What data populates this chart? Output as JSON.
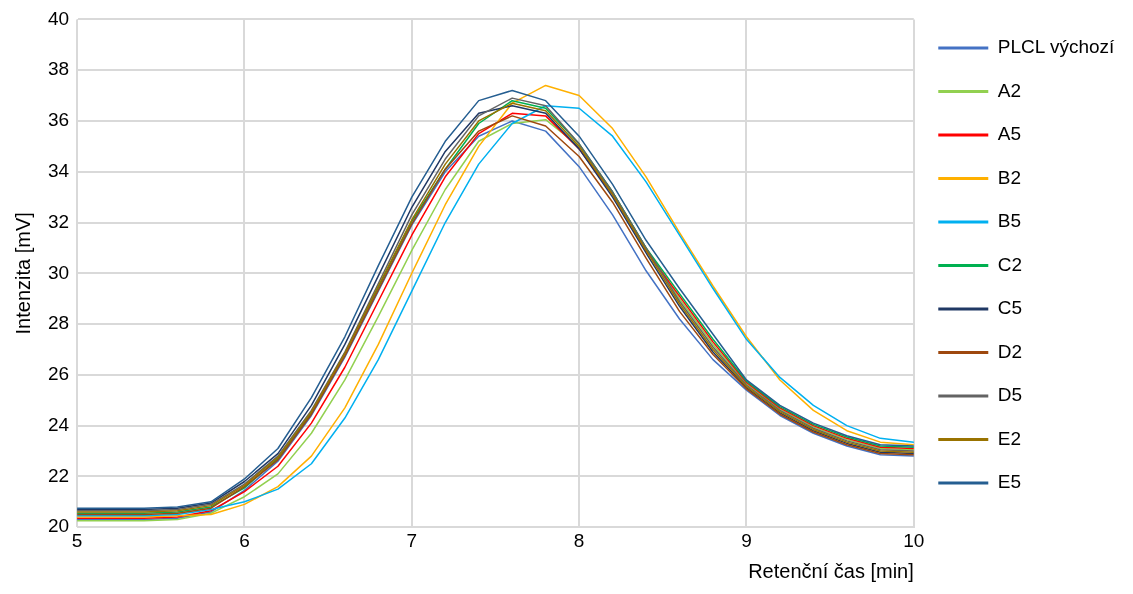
{
  "chart_data": {
    "type": "line",
    "xlabel": "Retenční čas [min]",
    "ylabel": "Intenzita [mV]",
    "x": [
      5.0,
      5.2,
      5.4,
      5.6,
      5.8,
      6.0,
      6.2,
      6.4,
      6.6,
      6.8,
      7.0,
      7.2,
      7.4,
      7.6,
      7.8,
      8.0,
      8.2,
      8.4,
      8.6,
      8.8,
      9.0,
      9.2,
      9.4,
      9.6,
      9.8,
      10.0
    ],
    "xlim": [
      5,
      10
    ],
    "xticks": [
      5,
      6,
      7,
      8,
      9,
      10
    ],
    "ylim": [
      20,
      40
    ],
    "yticks": [
      20,
      22,
      24,
      26,
      28,
      30,
      32,
      34,
      36,
      38,
      40
    ],
    "grid": true,
    "legend": "right",
    "marker": "none",
    "line_style": "solid",
    "series": [
      {
        "name": "PLCL výchozí",
        "color": "#4472c4",
        "values": [
          20.3,
          20.3,
          20.3,
          20.35,
          20.6,
          21.45,
          22.6,
          24.4,
          26.7,
          29.3,
          31.9,
          34.0,
          35.4,
          36.0,
          35.6,
          34.2,
          32.3,
          30.1,
          28.2,
          26.6,
          25.4,
          24.4,
          23.7,
          23.2,
          22.85,
          22.8
        ]
      },
      {
        "name": "A2",
        "color": "#92d050",
        "values": [
          20.25,
          20.25,
          20.25,
          20.3,
          20.55,
          21.2,
          22.1,
          23.7,
          25.8,
          28.3,
          30.9,
          33.3,
          35.2,
          35.9,
          36.05,
          35.0,
          33.2,
          31.0,
          29.0,
          27.2,
          25.65,
          24.65,
          23.95,
          23.45,
          23.1,
          23.05
        ]
      },
      {
        "name": "A5",
        "color": "#ff0000",
        "values": [
          20.35,
          20.35,
          20.35,
          20.4,
          20.65,
          21.4,
          22.4,
          24.1,
          26.3,
          28.9,
          31.5,
          33.8,
          35.5,
          36.3,
          36.2,
          34.9,
          33.1,
          30.9,
          29.1,
          27.3,
          25.7,
          24.7,
          24.0,
          23.5,
          23.15,
          23.1
        ]
      },
      {
        "name": "B2",
        "color": "#ffb000",
        "values": [
          20.4,
          20.4,
          20.4,
          20.45,
          20.5,
          20.9,
          21.6,
          22.8,
          24.7,
          27.2,
          30.0,
          32.7,
          35.0,
          36.7,
          37.4,
          37.0,
          35.7,
          33.8,
          31.6,
          29.5,
          27.5,
          25.8,
          24.6,
          23.8,
          23.35,
          23.25
        ]
      },
      {
        "name": "B5",
        "color": "#00b0f0",
        "values": [
          20.45,
          20.45,
          20.45,
          20.5,
          20.7,
          21.0,
          21.5,
          22.5,
          24.3,
          26.6,
          29.3,
          32.0,
          34.3,
          35.9,
          36.6,
          36.5,
          35.4,
          33.6,
          31.5,
          29.4,
          27.4,
          25.9,
          24.8,
          24.0,
          23.5,
          23.35
        ]
      },
      {
        "name": "C2",
        "color": "#00b050",
        "values": [
          20.55,
          20.55,
          20.55,
          20.6,
          20.8,
          21.55,
          22.7,
          24.5,
          26.85,
          29.45,
          32.05,
          34.1,
          35.9,
          36.8,
          36.5,
          35.1,
          33.2,
          31.0,
          29.2,
          27.4,
          25.75,
          24.75,
          24.05,
          23.55,
          23.2,
          23.15
        ]
      },
      {
        "name": "C5",
        "color": "#203864",
        "values": [
          20.7,
          20.7,
          20.7,
          20.75,
          20.95,
          21.8,
          22.9,
          24.8,
          27.2,
          29.9,
          32.6,
          34.8,
          36.3,
          36.6,
          36.3,
          34.9,
          33.0,
          30.8,
          28.7,
          26.9,
          25.5,
          24.5,
          23.8,
          23.3,
          22.95,
          22.9
        ]
      },
      {
        "name": "D2",
        "color": "#9e480e",
        "values": [
          20.5,
          20.5,
          20.5,
          20.55,
          20.75,
          21.6,
          22.65,
          24.45,
          26.75,
          29.35,
          31.95,
          34.1,
          35.6,
          36.2,
          35.8,
          34.6,
          32.8,
          30.6,
          28.5,
          26.8,
          25.45,
          24.45,
          23.75,
          23.25,
          22.9,
          22.85
        ]
      },
      {
        "name": "D5",
        "color": "#636363",
        "values": [
          20.65,
          20.65,
          20.65,
          20.7,
          20.9,
          21.7,
          22.8,
          24.6,
          26.9,
          29.6,
          32.3,
          34.5,
          36.2,
          36.9,
          36.6,
          35.1,
          33.2,
          31.0,
          28.9,
          27.1,
          25.6,
          24.6,
          23.9,
          23.4,
          23.05,
          23.0
        ]
      },
      {
        "name": "E2",
        "color": "#997300",
        "values": [
          20.6,
          20.6,
          20.6,
          20.65,
          20.85,
          21.65,
          22.75,
          24.55,
          26.85,
          29.5,
          32.1,
          34.3,
          36.0,
          36.7,
          36.4,
          35.0,
          33.1,
          30.9,
          28.8,
          27.0,
          25.55,
          24.55,
          23.85,
          23.35,
          23.0,
          22.95
        ]
      },
      {
        "name": "E5",
        "color": "#255e91",
        "values": [
          20.75,
          20.75,
          20.75,
          20.8,
          21.0,
          21.9,
          23.1,
          25.1,
          27.5,
          30.3,
          33.0,
          35.2,
          36.8,
          37.2,
          36.8,
          35.4,
          33.5,
          31.3,
          29.4,
          27.6,
          25.8,
          24.8,
          24.1,
          23.6,
          23.25,
          23.2
        ]
      }
    ]
  }
}
